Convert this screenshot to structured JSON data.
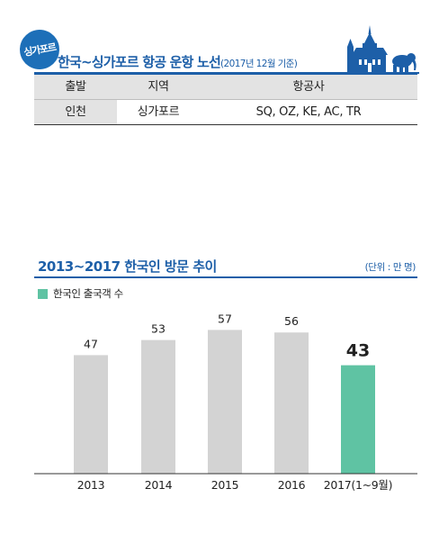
{
  "route_table": {
    "badge": "싱가포르",
    "title": "한국~싱가포르 항공 운항 노선",
    "note": "(2017년 12월 기준)",
    "columns": [
      "출발",
      "지역",
      "항공사"
    ],
    "row": {
      "departure": "인천",
      "region": "싱가포르",
      "airlines": "SQ, OZ, KE, AC, TR"
    }
  },
  "colors": {
    "accent": "#1d5fa8",
    "bar_default": "#d3d3d3",
    "bar_highlight": "#5fc3a3"
  },
  "chart_data": {
    "type": "bar",
    "title": "2013~2017 한국인 방문 추이",
    "unit_note": "(단위 : 만 명)",
    "categories": [
      "2013",
      "2014",
      "2015",
      "2016",
      "2017(1~9월)"
    ],
    "series": [
      {
        "name": "한국인 출국객 수",
        "values": [
          47,
          53,
          57,
          56,
          43
        ]
      }
    ],
    "data_labels": [
      "47",
      "53",
      "57",
      "56",
      "43"
    ],
    "highlight_index": 4,
    "ylim": [
      0,
      70
    ],
    "grid": false,
    "legend": "top-left",
    "xlabel": "",
    "ylabel": ""
  }
}
